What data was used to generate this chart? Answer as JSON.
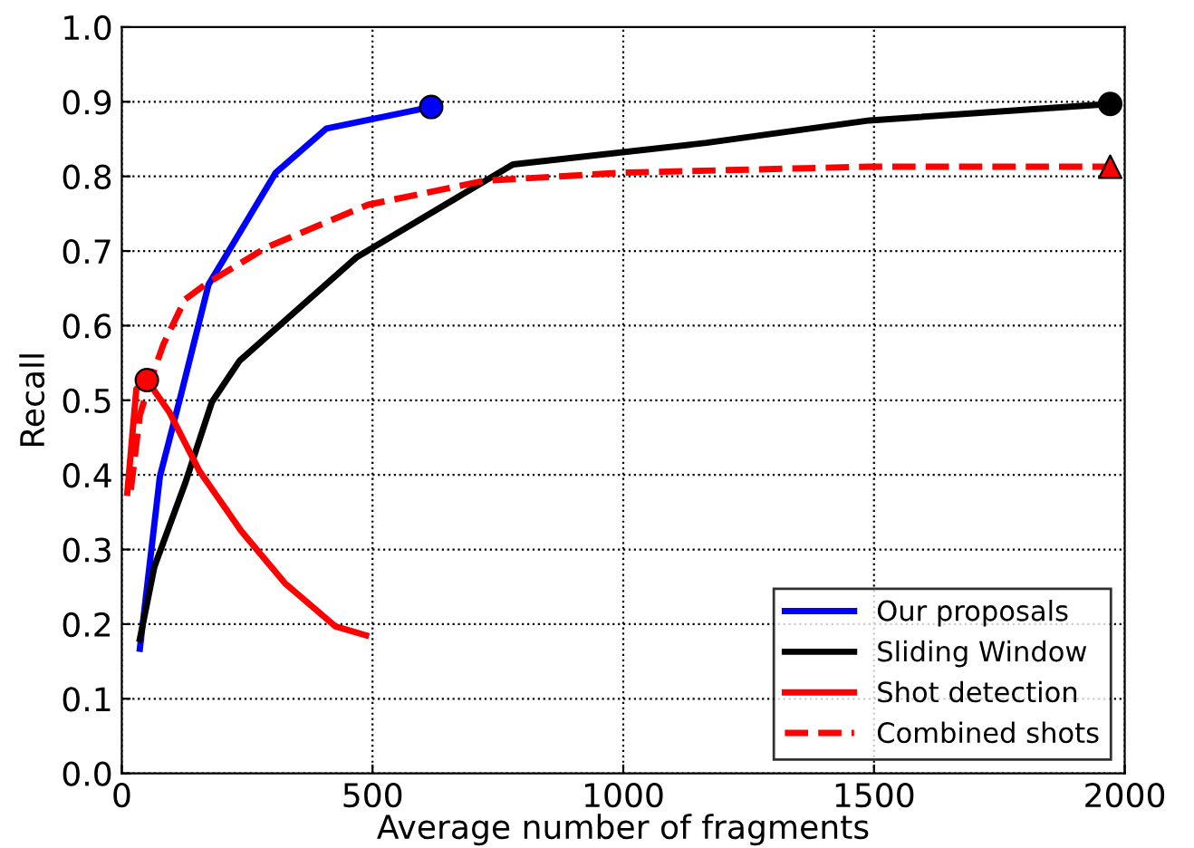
{
  "chart_data": {
    "type": "line",
    "xlabel": "Average number of fragments",
    "ylabel": "Recall",
    "xlim": [
      0,
      2000
    ],
    "ylim": [
      0,
      1
    ],
    "xticks": [
      0,
      500,
      1000,
      1500,
      2000
    ],
    "yticks": [
      {
        "value": 0,
        "label": "0.0"
      },
      0.1,
      0.2,
      0.3,
      0.4,
      0.5,
      0.6,
      0.7,
      0.8,
      0.9,
      {
        "value": 1,
        "label": "1.0"
      }
    ],
    "grid": true,
    "legend": "bottom right",
    "series": [
      {
        "name": "Our proposals",
        "color": "#0000ff",
        "line_style": "solid",
        "x": [
          36,
          76,
          119,
          173,
          307,
          408,
          617
        ],
        "values": [
          0.167,
          0.398,
          0.51,
          0.655,
          0.805,
          0.864,
          0.893
        ]
      },
      {
        "name": "Sliding Window",
        "color": "#000000",
        "line_style": "solid",
        "x": [
          36,
          65,
          126,
          180,
          235,
          469,
          780,
          1166,
          1491,
          1971
        ],
        "values": [
          0.18,
          0.277,
          0.388,
          0.498,
          0.553,
          0.692,
          0.816,
          0.845,
          0.875,
          0.897
        ]
      },
      {
        "name": "Shot detection",
        "color": "#ff0000",
        "line_style": "solid",
        "x": [
          11,
          29,
          50,
          94,
          155,
          238,
          325,
          426,
          487
        ],
        "values": [
          0.376,
          0.515,
          0.527,
          0.485,
          0.405,
          0.325,
          0.255,
          0.197,
          0.185
        ]
      },
      {
        "name": "Combined shots",
        "color": "#ff0000",
        "line_style": "dashed",
        "x": [
          18,
          36,
          54,
          83,
          126,
          166,
          289,
          491,
          722,
          1000,
          1491,
          1971
        ],
        "values": [
          0.38,
          0.48,
          0.52,
          0.575,
          0.635,
          0.655,
          0.705,
          0.762,
          0.794,
          0.805,
          0.813,
          0.813
        ]
      },
      {
        "type": "scatter",
        "color": "#0000ff",
        "marker": "circle",
        "x": [
          617
        ],
        "values": [
          0.893
        ]
      },
      {
        "type": "scatter",
        "color": "#000000",
        "marker": "circle",
        "x": [
          1971
        ],
        "values": [
          0.897
        ]
      },
      {
        "type": "scatter",
        "color": "#ff0000",
        "marker": "circle",
        "x": [
          50
        ],
        "values": [
          0.527
        ]
      },
      {
        "type": "scatter",
        "color": "#ff0000",
        "marker": "triangle",
        "x": [
          1971
        ],
        "values": [
          0.813
        ]
      }
    ]
  }
}
